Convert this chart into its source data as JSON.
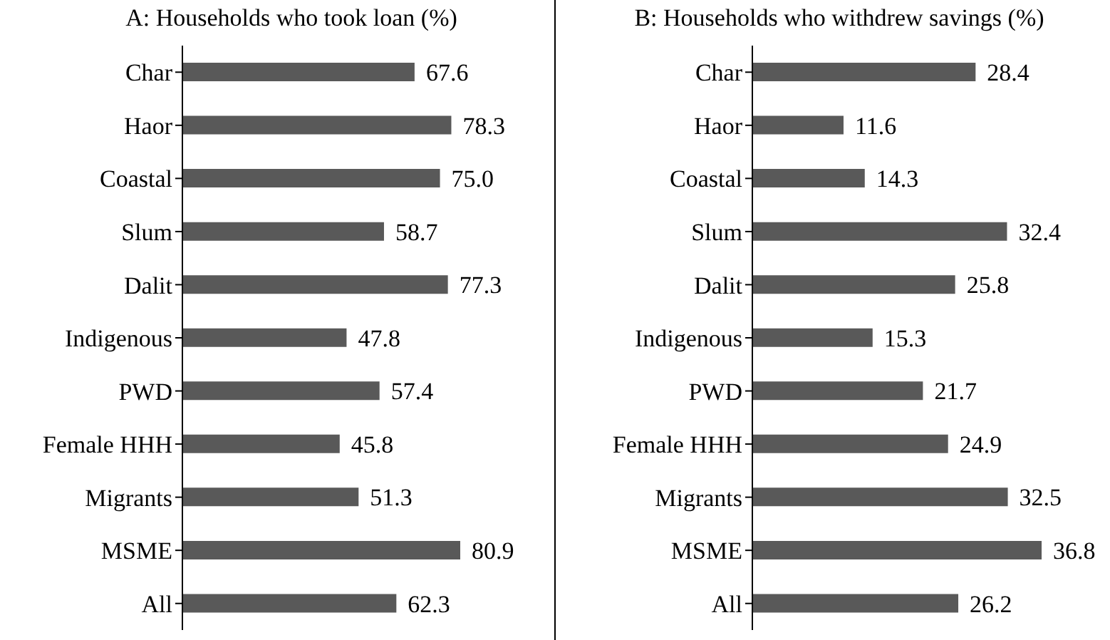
{
  "chart_data": [
    {
      "type": "bar",
      "orientation": "horizontal",
      "title": "A: Households who took loan (%)",
      "categories": [
        "Char",
        "Haor",
        "Coastal",
        "Slum",
        "Dalit",
        "Indigenous",
        "PWD",
        "Female HHH",
        "Migrants",
        "MSME",
        "All"
      ],
      "values": [
        67.6,
        78.3,
        75.0,
        58.7,
        77.3,
        47.8,
        57.4,
        45.8,
        51.3,
        80.9,
        62.3
      ],
      "value_labels": [
        "67.6",
        "78.3",
        "75.0",
        "58.7",
        "77.3",
        "47.8",
        "57.4",
        "45.8",
        "51.3",
        "80.9",
        "62.3"
      ],
      "color": "#595959",
      "tick_labels": "y",
      "grid": false,
      "legend": false
    },
    {
      "type": "bar",
      "orientation": "horizontal",
      "title": "B: Households who withdrew savings (%)",
      "categories": [
        "Char",
        "Haor",
        "Coastal",
        "Slum",
        "Dalit",
        "Indigenous",
        "PWD",
        "Female HHH",
        "Migrants",
        "MSME",
        "All"
      ],
      "values": [
        28.4,
        11.6,
        14.3,
        32.4,
        25.8,
        15.3,
        21.7,
        24.9,
        32.5,
        36.8,
        26.2
      ],
      "color": "#595959",
      "data_labels": true,
      "tick_labels": "y",
      "grid": false,
      "legend": false
    }
  ]
}
